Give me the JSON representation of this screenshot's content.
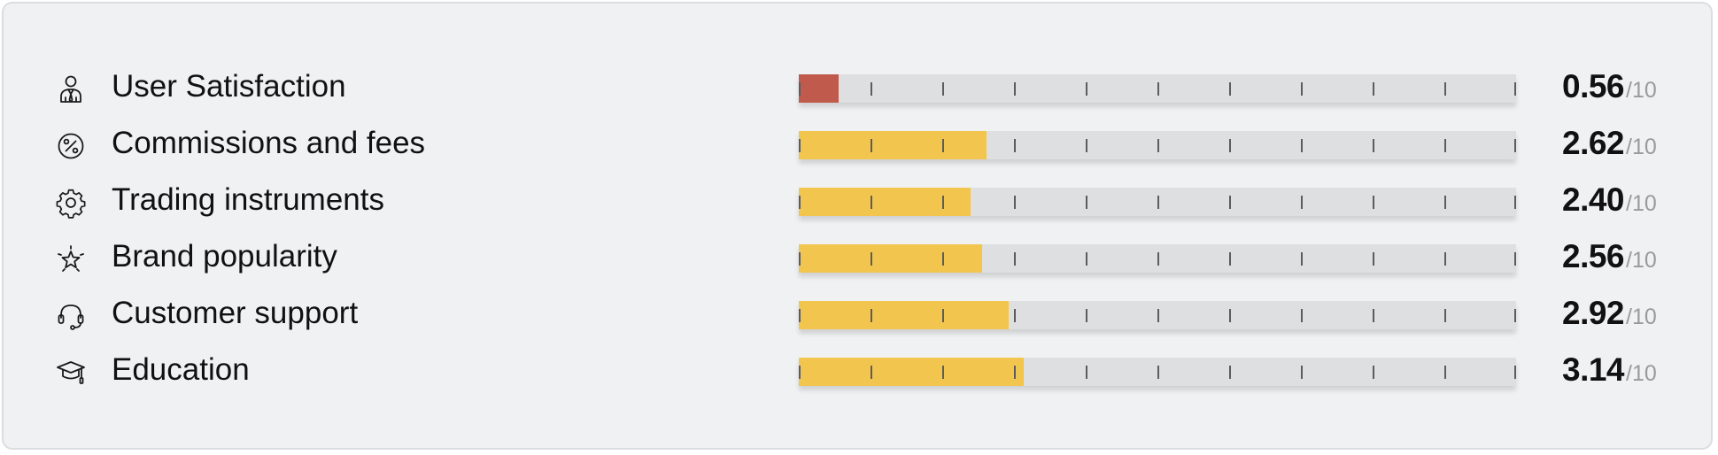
{
  "rows": [
    {
      "label": "User Satisfaction",
      "icon": "user-tie-icon",
      "value": "0.56",
      "max": "/10",
      "score": 0.56,
      "color": "#c05a4c"
    },
    {
      "label": "Commissions and fees",
      "icon": "percent-badge-icon",
      "value": "2.62",
      "max": "/10",
      "score": 2.62,
      "color": "#f2c64e"
    },
    {
      "label": "Trading instruments",
      "icon": "gear-icon",
      "value": "2.40",
      "max": "/10",
      "score": 2.4,
      "color": "#f2c64e"
    },
    {
      "label": "Brand popularity",
      "icon": "sparkle-star-icon",
      "value": "2.56",
      "max": "/10",
      "score": 2.56,
      "color": "#f2c64e"
    },
    {
      "label": "Customer support",
      "icon": "headset-icon",
      "value": "2.92",
      "max": "/10",
      "score": 2.92,
      "color": "#f2c64e"
    },
    {
      "label": "Education",
      "icon": "graduation-cap-icon",
      "value": "3.14",
      "max": "/10",
      "score": 3.14,
      "color": "#f2c64e"
    }
  ],
  "scale_max": 10
}
